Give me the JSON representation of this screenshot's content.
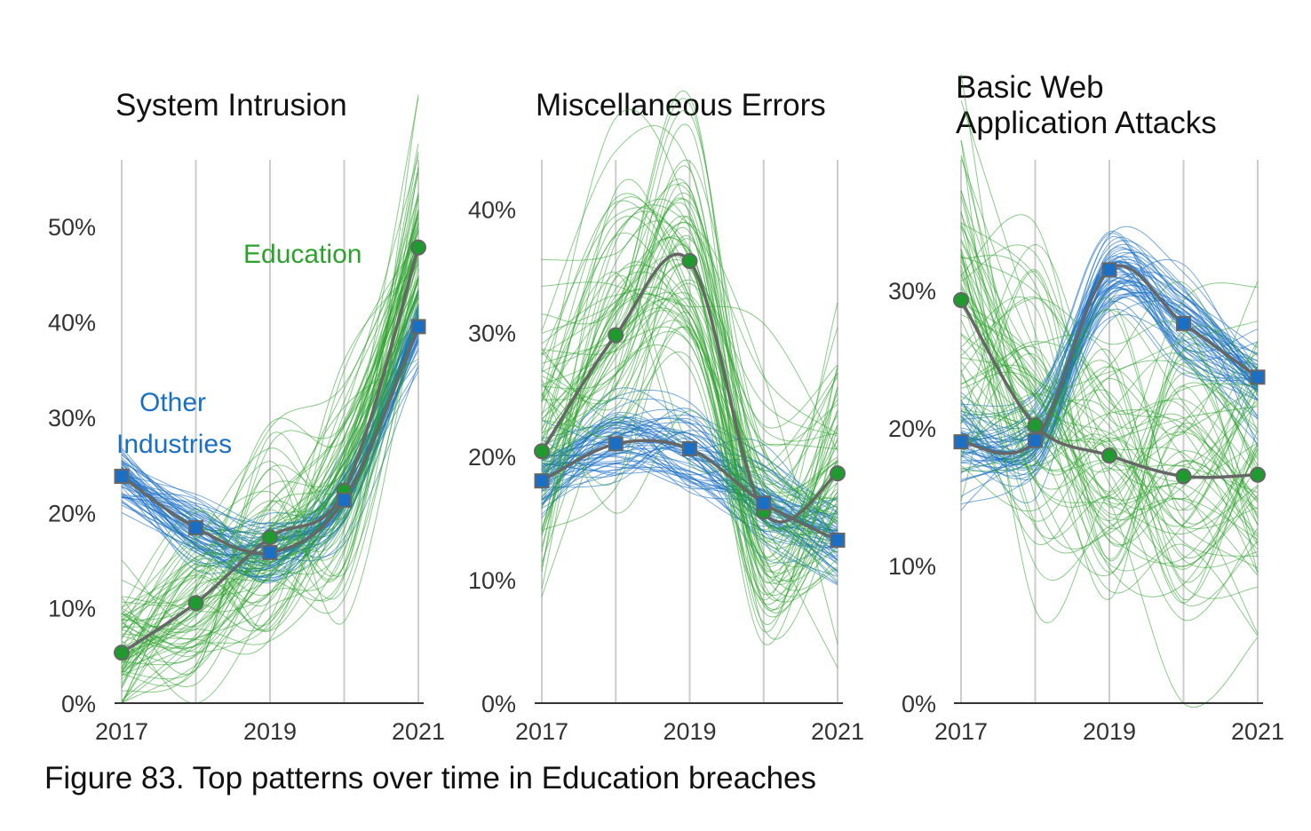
{
  "colors": {
    "education": "#2ca02c",
    "education_marker": "#1f9a2e",
    "other": "#1a6fc4",
    "other_marker": "#1a6fc4",
    "median_line": "#666666",
    "grid": "#cccccc",
    "axis": "#333333",
    "text": "#111111"
  },
  "caption": "Figure 83. Top patterns over time in Education breaches",
  "chart_data": [
    {
      "type": "line",
      "title": "System Intrusion",
      "x": [
        2017,
        2018,
        2019,
        2020,
        2021
      ],
      "x_tick_labels": [
        "2017",
        "2019",
        "2021"
      ],
      "y_tick_labels": [
        "0%",
        "10%",
        "20%",
        "30%",
        "40%",
        "50%"
      ],
      "ylim": [
        0,
        0.57
      ],
      "series": [
        {
          "name": "Education",
          "key": "education",
          "values": [
            0.053,
            0.105,
            0.174,
            0.223,
            0.478
          ]
        },
        {
          "name": "Other Industries",
          "key": "other",
          "values": [
            0.238,
            0.184,
            0.158,
            0.213,
            0.395
          ]
        }
      ],
      "annotations": [
        {
          "series": "education",
          "lines": [
            "Education"
          ]
        },
        {
          "series": "other",
          "lines": [
            "Other",
            "Industries"
          ]
        }
      ]
    },
    {
      "type": "line",
      "title": "Miscellaneous Errors",
      "x": [
        2017,
        2018,
        2019,
        2020,
        2021
      ],
      "x_tick_labels": [
        "2017",
        "2019",
        "2021"
      ],
      "y_tick_labels": [
        "0%",
        "10%",
        "20%",
        "30%",
        "40%"
      ],
      "ylim": [
        0,
        0.44
      ],
      "series": [
        {
          "name": "Education",
          "key": "education",
          "values": [
            0.204,
            0.298,
            0.358,
            0.155,
            0.186
          ]
        },
        {
          "name": "Other Industries",
          "key": "other",
          "values": [
            0.18,
            0.21,
            0.206,
            0.162,
            0.132
          ]
        }
      ]
    },
    {
      "type": "line",
      "title": "Basic Web Application Attacks",
      "x": [
        2017,
        2018,
        2019,
        2020,
        2021
      ],
      "x_tick_labels": [
        "2017",
        "2019",
        "2021"
      ],
      "y_tick_labels": [
        "0%",
        "10%",
        "20%",
        "30%"
      ],
      "ylim": [
        0,
        0.395
      ],
      "series": [
        {
          "name": "Education",
          "key": "education",
          "values": [
            0.293,
            0.202,
            0.18,
            0.165,
            0.166
          ]
        },
        {
          "name": "Other Industries",
          "key": "other",
          "values": [
            0.19,
            0.191,
            0.315,
            0.276,
            0.237
          ]
        }
      ]
    }
  ]
}
